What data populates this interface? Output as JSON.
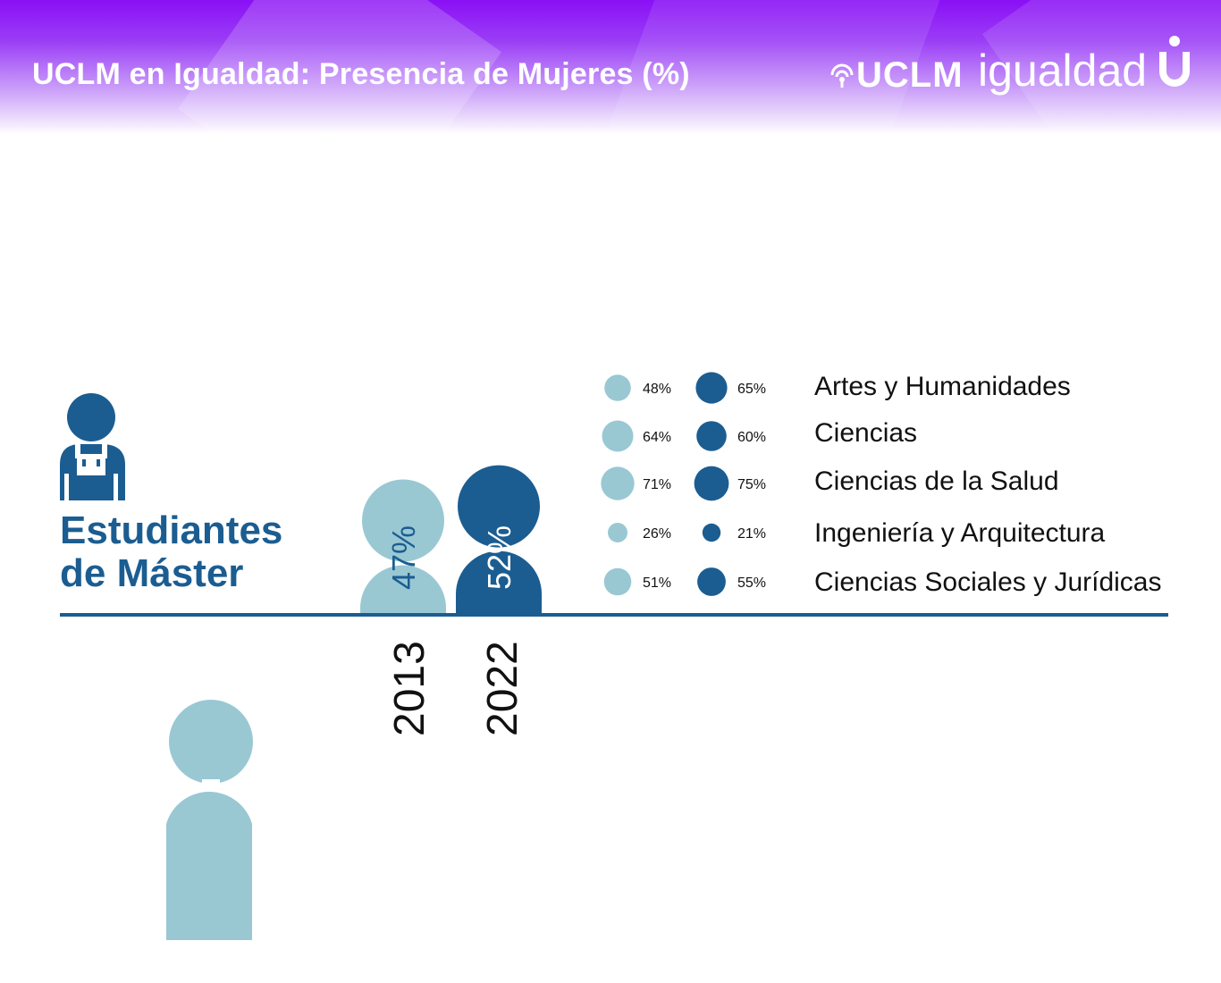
{
  "header": {
    "title": "UCLM en Igualdad: Presencia de Mujeres (%)",
    "logo_bold": "UCLM",
    "logo_light": "igualdad",
    "logo_u_letter": "U"
  },
  "section": {
    "title_line1": "Estudiantes",
    "title_line2": "de Máster",
    "icon": "student-with-backpack-icon"
  },
  "colors": {
    "header_purple": "#8a0ff5",
    "light_series": "#99c8d3",
    "dark_series": "#1b5d91",
    "axis": "#1b5d91"
  },
  "chart_data": {
    "type": "bar",
    "categories": [
      "2013",
      "2022"
    ],
    "values": [
      47,
      52
    ],
    "value_labels": [
      "47%",
      "52%"
    ],
    "title": "",
    "xlabel": "",
    "ylabel": "",
    "breakdown": {
      "type": "scatter",
      "categories": [
        "Artes y Humanidades",
        "Ciencias",
        "Ciencias de la Salud",
        "Ingeniería y Arquitectura",
        "Ciencias Sociales y Jurídicas"
      ],
      "series": [
        {
          "year": "2013",
          "values": [
            48,
            64,
            71,
            26,
            51
          ],
          "labels": [
            "48%",
            "64%",
            "71%",
            "26%",
            "51%"
          ],
          "color": "#99c8d3"
        },
        {
          "year": "2022",
          "values": [
            65,
            60,
            75,
            21,
            55
          ],
          "labels": [
            "65%",
            "60%",
            "75%",
            "21%",
            "55%"
          ],
          "color": "#1b5d91"
        }
      ]
    }
  }
}
